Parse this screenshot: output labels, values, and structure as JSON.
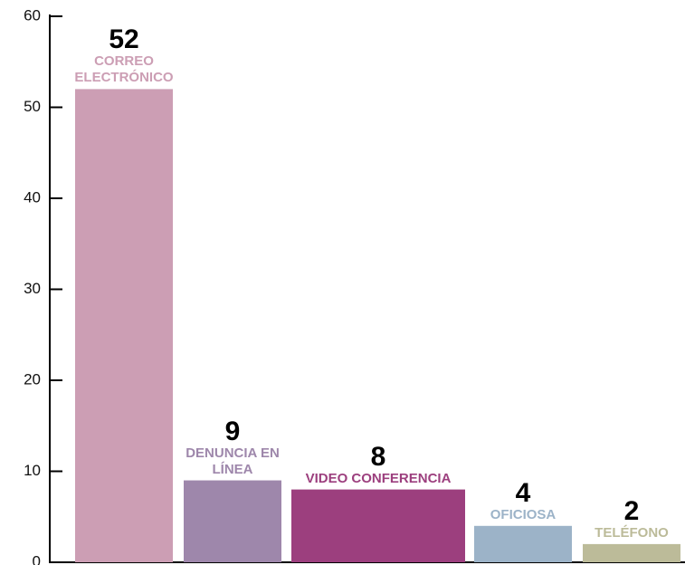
{
  "chart_data": {
    "type": "bar",
    "categories": [
      "CORREO ELECTRÓNICO",
      "DENUNCIA EN LÍNEA",
      "VIDEO  CONFERENCIA",
      "OFICIOSA",
      "TELÉFONO"
    ],
    "values": [
      52,
      9,
      8,
      4,
      2
    ],
    "colors": [
      "#cc9eb4",
      "#9e87ab",
      "#9c3f7e",
      "#9cb3c8",
      "#bcbb99"
    ],
    "ylim": [
      0,
      60
    ],
    "yticks": [
      0,
      10,
      20,
      30,
      40,
      50,
      60
    ],
    "grid": false
  }
}
